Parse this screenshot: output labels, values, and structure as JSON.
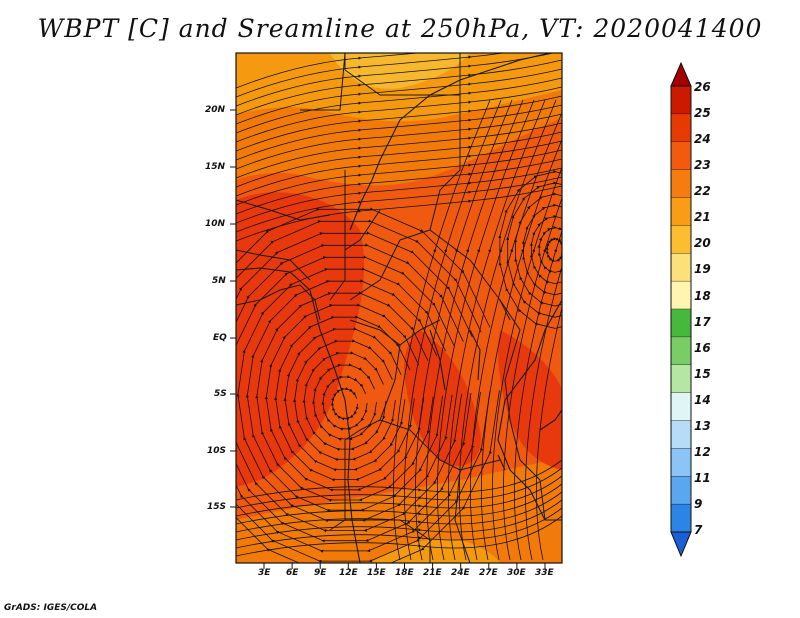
{
  "title": "WBPT [C] and Sreamline at 250hPa, VT: 2020041400",
  "footer": "GrADS: IGES/COLA",
  "map": {
    "lat_labels": [
      "20N",
      "15N",
      "10N",
      "5N",
      "EQ",
      "5S",
      "10S",
      "15S"
    ],
    "lon_labels": [
      "3E",
      "6E",
      "9E",
      "12E",
      "15E",
      "18E",
      "21E",
      "24E",
      "27E",
      "30E",
      "33E"
    ],
    "fill_colors": {
      "c20": "#f7b830",
      "c21": "#f59a10",
      "c22": "#f27a0a",
      "c23": "#ef5a10",
      "c24": "#e8380e"
    },
    "border_color": "#1a1a1a",
    "streamline_color": "#111111"
  },
  "colorbar": {
    "labels": [
      "26",
      "25",
      "24",
      "23",
      "22",
      "21",
      "20",
      "19",
      "18",
      "17",
      "16",
      "15",
      "14",
      "13",
      "12",
      "11",
      "9",
      "7"
    ],
    "colors": [
      "#a50000",
      "#cc1a00",
      "#e63a00",
      "#f25a10",
      "#f77c10",
      "#fa9c15",
      "#fcbd30",
      "#fde07a",
      "#fff5b0",
      "#46b83c",
      "#7acc66",
      "#b5e6a3",
      "#e0f5f5",
      "#b7dcf7",
      "#8cc5f5",
      "#5aa6ef",
      "#2c85e6",
      "#1a5fd8"
    ]
  }
}
